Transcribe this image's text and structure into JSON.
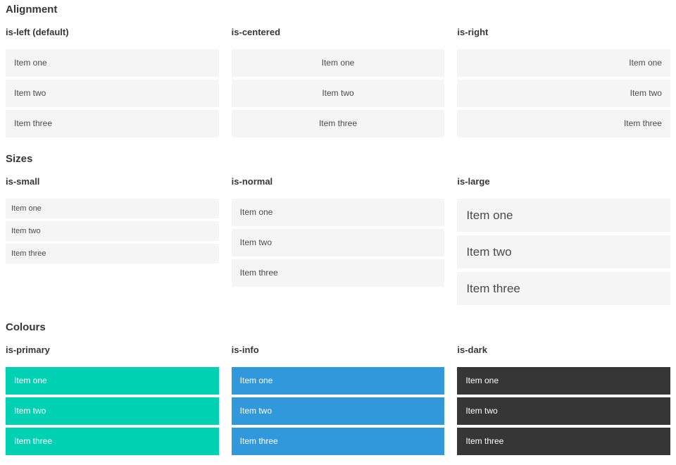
{
  "page": {
    "background": "#ffffff"
  },
  "colors": {
    "primary": "#00d1b2",
    "info": "#3298dc",
    "dark": "#363636",
    "item_background": "#f5f5f5",
    "item_text": "#4a4a4a",
    "heading_text": "#363636",
    "colored_item_text": "#ffffff"
  },
  "sections": [
    {
      "title": "Alignment",
      "columns": [
        {
          "subtitle": "is-left (default)",
          "variant": "align-left",
          "items": [
            "Item one",
            "Item two",
            "Item three"
          ]
        },
        {
          "subtitle": "is-centered",
          "variant": "align-center",
          "items": [
            "Item one",
            "Item two",
            "Item three"
          ]
        },
        {
          "subtitle": "is-right",
          "variant": "align-right",
          "items": [
            "Item one",
            "Item two",
            "Item three"
          ]
        }
      ]
    },
    {
      "title": "Sizes",
      "columns": [
        {
          "subtitle": "is-small",
          "variant": "size-small",
          "items": [
            "Item one",
            "Item two",
            "Item three"
          ]
        },
        {
          "subtitle": "is-normal",
          "variant": "size-normal",
          "items": [
            "Item one",
            "Item two",
            "Item three"
          ]
        },
        {
          "subtitle": "is-large",
          "variant": "size-large",
          "items": [
            "Item one",
            "Item two",
            "Item three"
          ]
        }
      ]
    },
    {
      "title": "Colours",
      "columns": [
        {
          "subtitle": "is-primary",
          "variant": "color-primary",
          "items": [
            "Item one",
            "Item two",
            "Item three"
          ]
        },
        {
          "subtitle": "is-info",
          "variant": "color-info",
          "items": [
            "Item one",
            "Item two",
            "Item three"
          ]
        },
        {
          "subtitle": "is-dark",
          "variant": "color-dark",
          "items": [
            "Item one",
            "Item two",
            "Item three"
          ]
        }
      ]
    }
  ]
}
